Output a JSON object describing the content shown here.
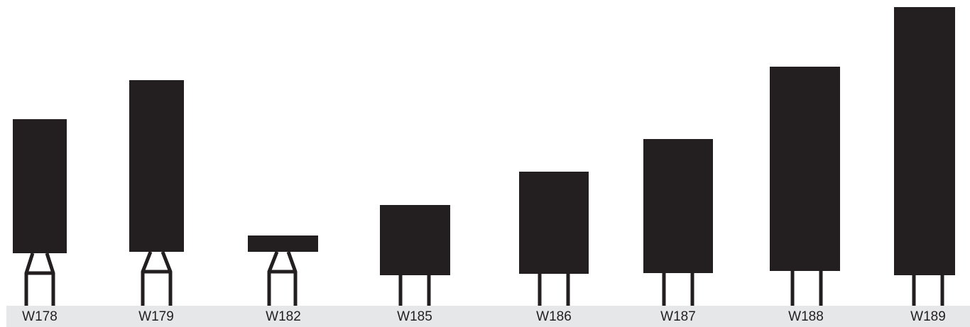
{
  "colors": {
    "shape": "#231f20",
    "label_strip": "#e6e7e8",
    "background": "#ffffff"
  },
  "items": [
    {
      "label": "W178",
      "leg_style": "tapered"
    },
    {
      "label": "W179",
      "leg_style": "tapered"
    },
    {
      "label": "W182",
      "leg_style": "tapered"
    },
    {
      "label": "W185",
      "leg_style": "straight"
    },
    {
      "label": "W186",
      "leg_style": "straight"
    },
    {
      "label": "W187",
      "leg_style": "straight"
    },
    {
      "label": "W188",
      "leg_style": "straight"
    },
    {
      "label": "W189",
      "leg_style": "straight"
    }
  ]
}
